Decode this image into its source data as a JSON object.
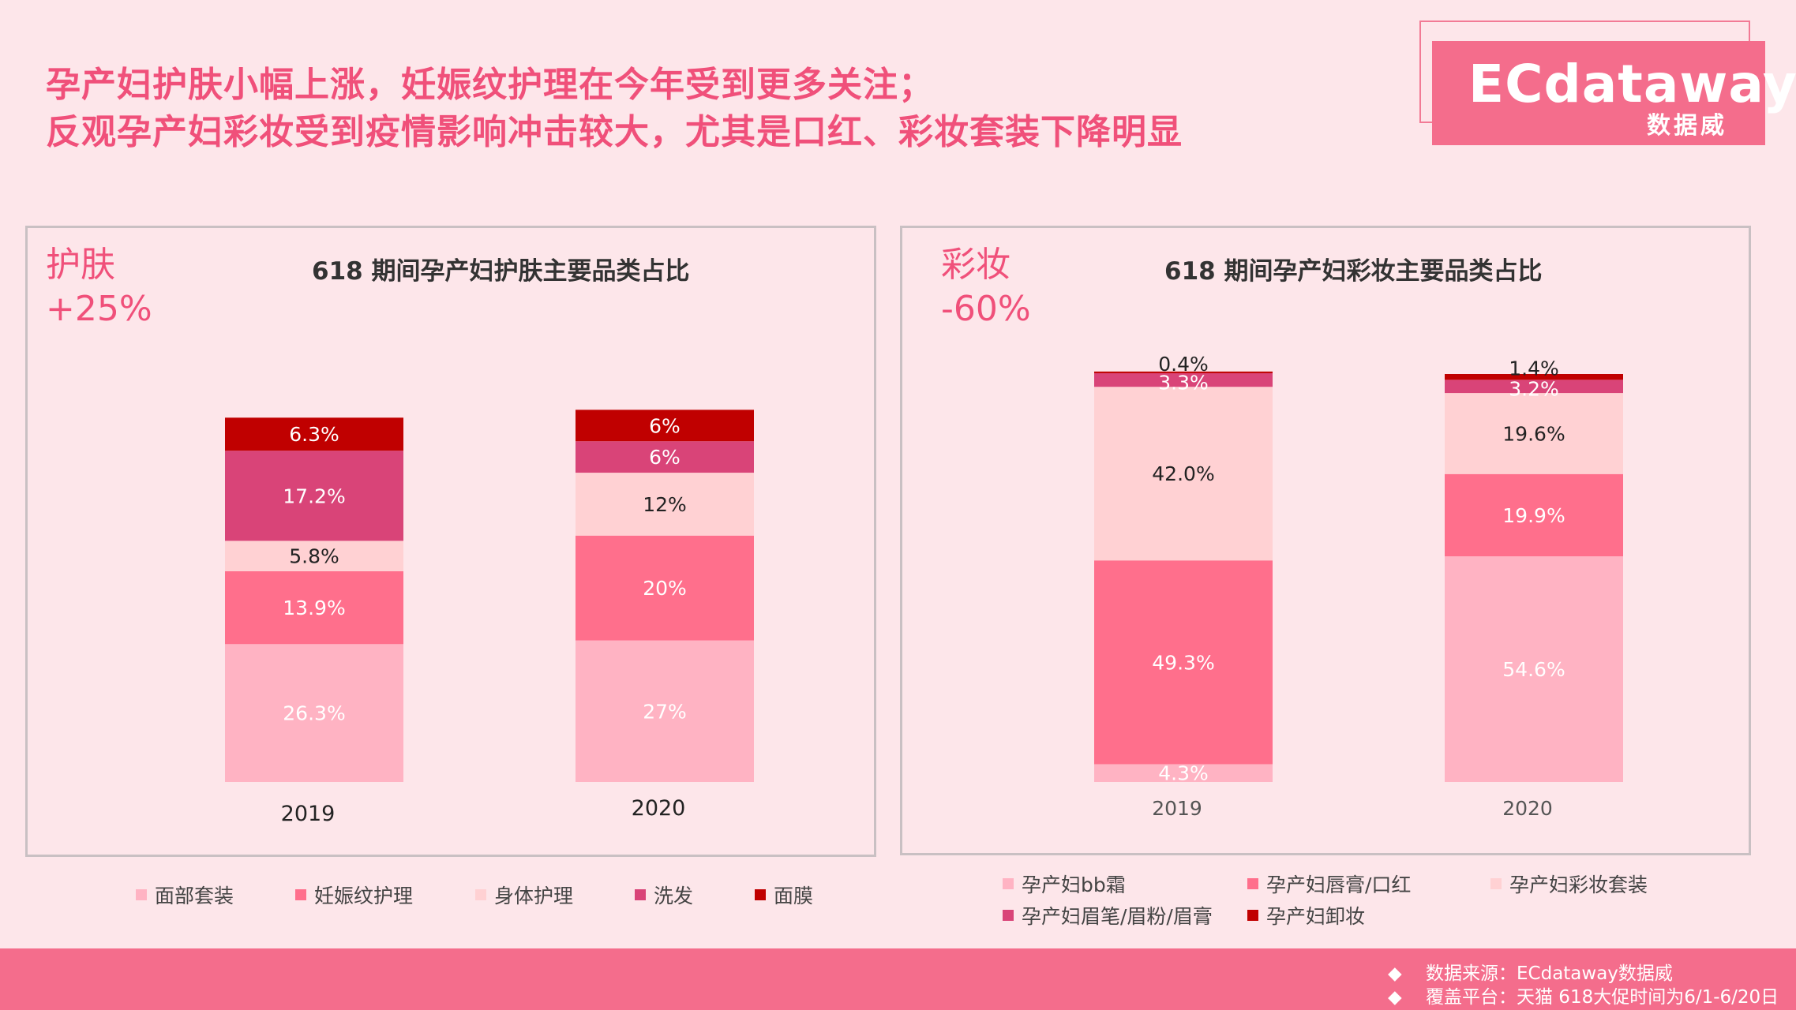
{
  "headline": {
    "line1": "孕产妇护肤小幅上涨，妊娠纹护理在今年受到更多关注；",
    "line2": "反观孕产妇彩妆受到疫情影响冲击较大，尤其是口红、彩妆套装下降明显"
  },
  "logo": {
    "brand": "ECdataway",
    "sub": "数据威"
  },
  "skincare": {
    "label": "护肤",
    "change": "+25%",
    "title": "618 期间孕产妇护肤主要品类占比",
    "legend": [
      {
        "name": "面部套装",
        "color": "#ffb3c3"
      },
      {
        "name": "妊娠纹护理",
        "color": "#ff6f8c"
      },
      {
        "name": "身体护理",
        "color": "#ffd1d3"
      },
      {
        "name": "洗发",
        "color": "#d94478"
      },
      {
        "name": "面膜",
        "color": "#c00000"
      }
    ]
  },
  "makeup": {
    "label": "彩妆",
    "change": "-60%",
    "title": "618 期间孕产妇彩妆主要品类占比",
    "legend": [
      {
        "name": "孕产妇bb霜",
        "color": "#ffb3c3"
      },
      {
        "name": "孕产妇唇膏/口红",
        "color": "#ff6f8c"
      },
      {
        "name": "孕产妇彩妆套装",
        "color": "#ffd1d3"
      },
      {
        "name": "孕产妇眉笔/眉粉/眉膏",
        "color": "#d94478"
      },
      {
        "name": "孕产妇卸妆",
        "color": "#c00000"
      }
    ]
  },
  "chart_data": [
    {
      "type": "bar",
      "stacked": true,
      "title": "618 期间孕产妇护肤主要品类占比",
      "categories": [
        "2019",
        "2020"
      ],
      "series": [
        {
          "name": "面部套装",
          "values": [
            26.3,
            27
          ],
          "labels": [
            "26.3%",
            "27%"
          ],
          "color": "#ffb3c3"
        },
        {
          "name": "妊娠纹护理",
          "values": [
            13.9,
            20
          ],
          "labels": [
            "13.9%",
            "20%"
          ],
          "color": "#ff6f8c"
        },
        {
          "name": "身体护理",
          "values": [
            5.8,
            12
          ],
          "labels": [
            "5.8%",
            "12%"
          ],
          "color": "#ffd1d3"
        },
        {
          "name": "洗发",
          "values": [
            17.2,
            6
          ],
          "labels": [
            "17.2%",
            "6%"
          ],
          "color": "#d94478"
        },
        {
          "name": "面膜",
          "values": [
            6.3,
            6
          ],
          "labels": [
            "6.3%",
            "6%"
          ],
          "color": "#c00000"
        }
      ],
      "ylim": [
        0,
        70
      ],
      "legend": "bottom",
      "grid": false
    },
    {
      "type": "bar",
      "stacked": true,
      "title": "618 期间孕产妇彩妆主要品类占比",
      "categories": [
        "2019",
        "2020"
      ],
      "series": [
        {
          "name": "孕产妇bb霜",
          "values": [
            4.3,
            54.6
          ],
          "labels": [
            "4.3%",
            "54.6%"
          ],
          "color": "#ffb3c3"
        },
        {
          "name": "孕产妇唇膏/口红",
          "values": [
            49.3,
            19.9
          ],
          "labels": [
            "49.3%",
            "19.9%"
          ],
          "color": "#ff6f8c"
        },
        {
          "name": "孕产妇彩妆套装",
          "values": [
            42.0,
            19.6
          ],
          "labels": [
            "42.0%",
            "19.6%"
          ],
          "color": "#ffd1d3"
        },
        {
          "name": "孕产妇眉笔/眉粉/眉膏",
          "values": [
            3.3,
            3.2
          ],
          "labels": [
            "3.3%",
            "3.2%"
          ],
          "color": "#d94478"
        },
        {
          "name": "孕产妇卸妆",
          "values": [
            0.4,
            1.4
          ],
          "labels": [
            "0.4%",
            "1.4%"
          ],
          "color": "#c00000"
        }
      ],
      "ylim": [
        0,
        105
      ],
      "legend": "bottom",
      "grid": false
    }
  ],
  "footer": {
    "source": "数据来源：ECdataway数据威",
    "platform": "覆盖平台：天猫   618大促时间为6/1-6/20日",
    "bullet": "◆"
  }
}
